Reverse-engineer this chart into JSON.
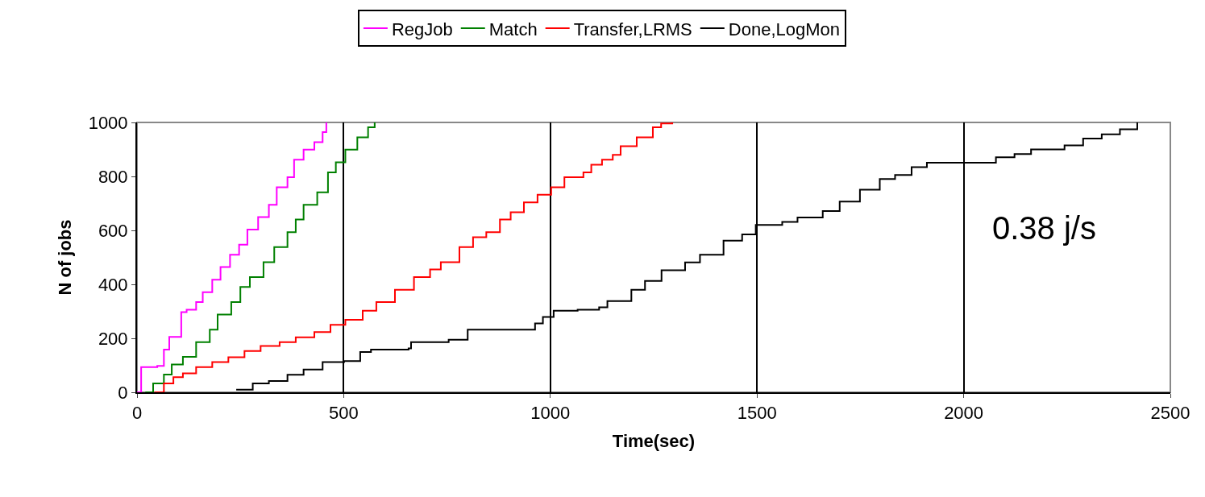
{
  "chart_data": {
    "type": "step",
    "xlabel": "Time(sec)",
    "ylabel": "N of jobs",
    "xlim": [
      0,
      2500
    ],
    "ylim": [
      0,
      1000
    ],
    "xticks": [
      0,
      500,
      1000,
      1500,
      2000,
      2500
    ],
    "yticks": [
      0,
      200,
      400,
      600,
      800,
      1000
    ],
    "grid": "x",
    "legend": "top",
    "marker": "none",
    "line_style": "solid",
    "annotations": [
      "0.38 j/s"
    ],
    "series": [
      {
        "name": "RegJob",
        "color": "#ff00ff",
        "x": [
          0,
          10,
          49,
          65,
          78,
          107,
          120,
          143,
          159,
          182,
          202,
          225,
          247,
          267,
          293,
          319,
          338,
          364,
          380,
          403,
          429,
          449,
          458
        ],
        "values": [
          0,
          93,
          98,
          158,
          205,
          297,
          306,
          334,
          371,
          417,
          464,
          510,
          547,
          603,
          649,
          695,
          760,
          797,
          862,
          899,
          927,
          964,
          1000
        ]
      },
      {
        "name": "Match",
        "color": "#008000",
        "x": [
          20,
          39,
          65,
          84,
          111,
          143,
          176,
          195,
          228,
          250,
          273,
          306,
          332,
          364,
          384,
          403,
          436,
          462,
          481,
          504,
          533,
          559,
          575
        ],
        "values": [
          0,
          33,
          66,
          103,
          131,
          186,
          232,
          288,
          334,
          390,
          427,
          482,
          538,
          593,
          640,
          695,
          741,
          815,
          852,
          899,
          945,
          982,
          1000
        ]
      },
      {
        "name": "Transfer,LRMS",
        "color": "#ff0000",
        "x": [
          42,
          65,
          88,
          111,
          143,
          182,
          221,
          260,
          299,
          345,
          384,
          429,
          468,
          504,
          546,
          579,
          624,
          670,
          709,
          735,
          780,
          813,
          845,
          878,
          904,
          936,
          969,
          1002,
          1034,
          1080,
          1099,
          1125,
          1151,
          1170,
          1209,
          1248,
          1268,
          1295
        ],
        "values": [
          0,
          33,
          56,
          70,
          93,
          112,
          130,
          153,
          172,
          186,
          204,
          223,
          250,
          269,
          302,
          334,
          380,
          427,
          455,
          482,
          538,
          575,
          593,
          640,
          667,
          704,
          732,
          760,
          797,
          815,
          843,
          862,
          880,
          912,
          945,
          982,
          996,
          1000
        ]
      },
      {
        "name": "Done,LogMon",
        "color": "#000000",
        "x": [
          240,
          280,
          319,
          364,
          403,
          449,
          501,
          540,
          566,
          657,
          663,
          754,
          800,
          956,
          963,
          982,
          1008,
          1066,
          1118,
          1138,
          1183,
          1196,
          1229,
          1269,
          1326,
          1362,
          1419,
          1464,
          1497,
          1561,
          1598,
          1659,
          1700,
          1749,
          1797,
          1834,
          1874,
          1911,
          2078,
          2123,
          2163,
          2244,
          2289,
          2334,
          2378,
          2420
        ],
        "values": [
          10,
          33,
          42,
          65,
          84,
          112,
          116,
          149,
          158,
          163,
          186,
          195,
          232,
          232,
          255,
          279,
          302,
          306,
          315,
          338,
          338,
          380,
          413,
          452,
          481,
          510,
          562,
          585,
          620,
          631,
          648,
          672,
          707,
          751,
          790,
          805,
          834,
          851,
          871,
          883,
          900,
          915,
          940,
          956,
          975,
          1000
        ]
      }
    ]
  }
}
